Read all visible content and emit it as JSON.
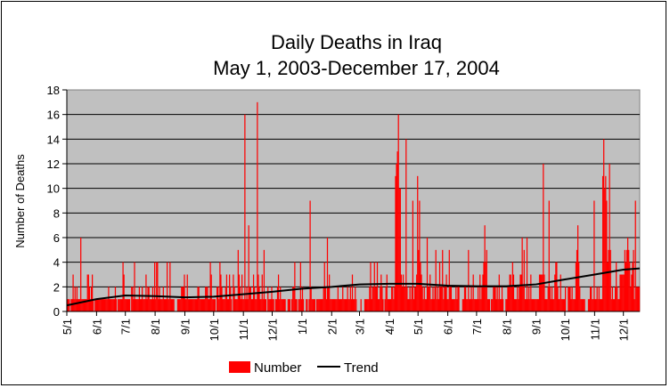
{
  "chart_data": {
    "type": "bar",
    "title": "Daily Deaths in Iraq",
    "subtitle": "May 1, 2003-December 17, 2004",
    "xlabel": "",
    "ylabel": "Number of Deaths",
    "ylim": [
      0,
      18
    ],
    "yticks": [
      "0",
      "2",
      "4",
      "6",
      "8",
      "10",
      "12",
      "14",
      "16",
      "18"
    ],
    "grid": true,
    "legend_position": "bottom",
    "colors": {
      "bars": "#FF0000",
      "trend": "#000000",
      "plot_bg": "#C0C0C0"
    },
    "months": [
      {
        "label": "5/1",
        "days": 31
      },
      {
        "label": "6/1",
        "days": 30
      },
      {
        "label": "7/1",
        "days": 31
      },
      {
        "label": "8/1",
        "days": 31
      },
      {
        "label": "9/1",
        "days": 30
      },
      {
        "label": "10/1",
        "days": 31
      },
      {
        "label": "11/1",
        "days": 30
      },
      {
        "label": "12/1",
        "days": 31
      },
      {
        "label": "1/1",
        "days": 31
      },
      {
        "label": "2/1",
        "days": 29
      },
      {
        "label": "3/1",
        "days": 31
      },
      {
        "label": "4/1",
        "days": 30
      },
      {
        "label": "5/1",
        "days": 31
      },
      {
        "label": "6/1",
        "days": 30
      },
      {
        "label": "7/1",
        "days": 31
      },
      {
        "label": "8/1",
        "days": 31
      },
      {
        "label": "9/1",
        "days": 30
      },
      {
        "label": "10/1",
        "days": 31
      },
      {
        "label": "11/1",
        "days": 30
      },
      {
        "label": "12/1",
        "days": 17
      }
    ],
    "series": [
      {
        "name": "Number",
        "values": [
          1,
          1,
          1,
          0,
          1,
          1,
          3,
          1,
          2,
          1,
          2,
          1,
          1,
          1,
          6,
          1,
          1,
          1,
          1,
          1,
          1,
          3,
          3,
          2,
          1,
          2,
          3,
          1,
          0,
          1,
          1,
          1,
          1,
          1,
          1,
          1,
          1,
          1,
          1,
          1,
          1,
          1,
          1,
          2,
          1,
          1,
          1,
          1,
          1,
          1,
          2,
          1,
          0,
          1,
          1,
          1,
          1,
          1,
          4,
          3,
          1,
          1,
          1,
          1,
          1,
          1,
          0,
          2,
          2,
          1,
          4,
          1,
          1,
          1,
          1,
          2,
          1,
          1,
          2,
          1,
          1,
          1,
          3,
          1,
          2,
          2,
          1,
          1,
          1,
          2,
          1,
          4,
          1,
          4,
          4,
          1,
          2,
          1,
          1,
          1,
          2,
          1,
          1,
          1,
          4,
          1,
          1,
          4,
          1,
          1,
          1,
          1,
          0,
          0,
          0,
          1,
          1,
          1,
          1,
          2,
          2,
          2,
          3,
          1,
          1,
          3,
          1,
          1,
          1,
          1,
          1,
          1,
          1,
          1,
          1,
          1,
          2,
          2,
          1,
          1,
          1,
          1,
          1,
          1,
          2,
          2,
          2,
          1,
          1,
          4,
          3,
          1,
          1,
          1,
          1,
          0,
          2,
          2,
          1,
          4,
          3,
          2,
          1,
          1,
          1,
          2,
          3,
          1,
          1,
          3,
          2,
          1,
          0,
          3,
          2,
          1,
          1,
          1,
          5,
          3,
          2,
          1,
          3,
          1,
          1,
          16,
          1,
          2,
          1,
          7,
          2,
          2,
          1,
          1,
          3,
          2,
          1,
          1,
          17,
          3,
          2,
          1,
          1,
          3,
          1,
          5,
          1,
          1,
          0,
          2,
          1,
          1,
          1,
          2,
          1,
          1,
          0,
          1,
          1,
          2,
          3,
          1,
          2,
          1,
          1,
          1,
          1,
          1,
          0,
          0,
          1,
          1,
          1,
          0,
          1,
          2,
          2,
          4,
          1,
          1,
          0,
          1,
          1,
          4,
          1,
          2,
          1,
          0,
          0,
          1,
          1,
          0,
          1,
          9,
          2,
          1,
          1,
          1,
          1,
          0,
          1,
          1,
          1,
          1,
          1,
          1,
          1,
          2,
          4,
          2,
          1,
          6,
          2,
          3,
          1,
          1,
          1,
          1,
          1,
          1,
          1,
          1,
          2,
          1,
          1,
          1,
          1,
          2,
          1,
          1,
          1,
          1,
          2,
          1,
          1,
          2,
          1,
          3,
          1,
          1,
          2,
          1,
          0,
          0,
          0,
          0,
          1,
          0,
          0,
          0,
          1,
          1,
          1,
          1,
          1,
          2,
          4,
          1,
          2,
          2,
          4,
          2,
          2,
          4,
          1,
          1,
          2,
          3,
          2,
          1,
          0,
          1,
          2,
          3,
          1,
          1,
          1,
          1,
          2,
          2,
          1,
          2,
          11,
          12,
          13,
          16,
          10,
          10,
          3,
          2,
          3,
          2,
          2,
          14,
          2,
          1,
          1,
          2,
          1,
          2,
          9,
          1,
          2,
          2,
          3,
          11,
          5,
          9,
          4,
          3,
          2,
          1,
          2,
          1,
          1,
          6,
          2,
          2,
          3,
          1,
          1,
          2,
          1,
          2,
          5,
          1,
          2,
          1,
          4,
          2,
          2,
          5,
          1,
          2,
          2,
          3,
          1,
          1,
          5,
          2,
          2,
          1,
          1,
          1,
          1,
          2,
          1,
          2,
          2,
          0,
          0,
          0,
          1,
          1,
          2,
          2,
          1,
          1,
          5,
          1,
          1,
          2,
          1,
          3,
          1,
          1,
          1,
          1,
          2,
          1,
          3,
          1,
          2,
          3,
          4,
          7,
          4,
          5,
          1,
          1,
          1,
          0,
          1,
          1,
          2,
          2,
          2,
          1,
          2,
          1,
          3,
          1,
          1,
          2,
          1,
          0,
          0,
          1,
          1,
          2,
          2,
          3,
          3,
          2,
          4,
          3,
          1,
          1,
          1,
          2,
          1,
          2,
          3,
          3,
          6,
          2,
          5,
          1,
          1,
          6,
          1,
          2,
          1,
          3,
          1,
          1,
          1,
          1,
          1,
          1,
          1,
          1,
          3,
          3,
          3,
          3,
          12,
          3,
          1,
          1,
          1,
          2,
          9,
          2,
          1,
          2,
          1,
          1,
          3,
          4,
          4,
          2,
          1,
          1,
          3,
          1,
          1,
          1,
          1,
          2,
          0,
          0,
          2,
          2,
          2,
          1,
          2,
          1,
          1,
          1,
          4,
          5,
          7,
          4,
          2,
          1,
          1,
          1,
          1,
          1,
          0,
          0,
          0,
          1,
          1,
          2,
          2,
          1,
          1,
          9,
          1,
          1,
          2,
          1,
          2,
          1,
          1,
          1,
          11,
          14,
          10,
          11,
          9,
          4,
          5,
          12,
          5,
          1,
          2,
          1,
          1,
          2,
          4,
          2,
          1,
          1,
          3,
          3,
          3,
          3,
          3,
          5,
          4,
          5,
          6,
          5,
          4,
          2,
          3,
          4,
          5,
          1,
          9,
          2,
          2,
          2,
          2
        ]
      },
      {
        "name": "Trend",
        "monthly_values": [
          0.5,
          1.0,
          1.3,
          1.25,
          1.15,
          1.2,
          1.4,
          1.6,
          1.85,
          2.0,
          2.2,
          2.25,
          2.25,
          2.1,
          2.05,
          2.05,
          2.2,
          2.6,
          3.0,
          3.4,
          3.5
        ]
      }
    ]
  }
}
